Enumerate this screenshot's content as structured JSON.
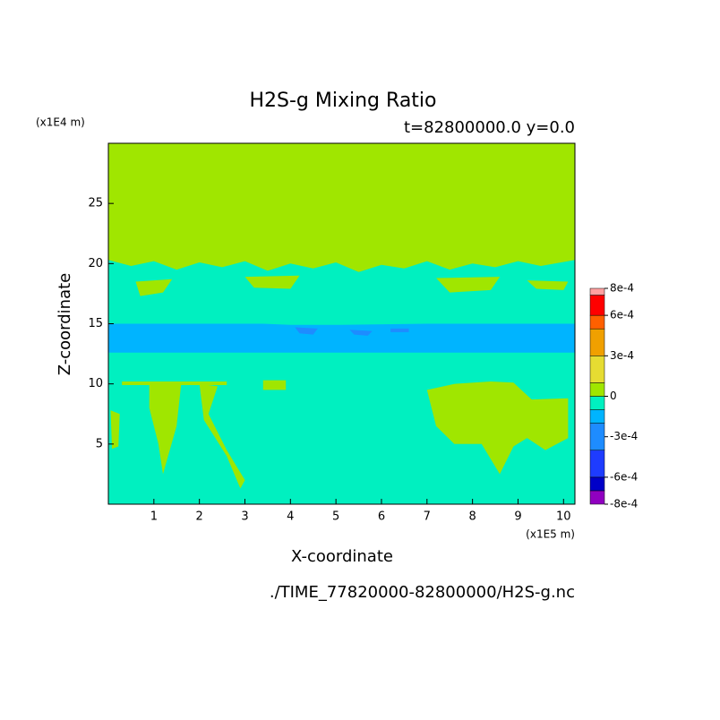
{
  "chart_data": {
    "type": "contour",
    "title": "H2S-g Mixing Ratio",
    "subtitle": "t=82800000.0 y=0.0",
    "x_label": "X-coordinate",
    "y_label": "Z-coordinate",
    "x_unit": "(x1E5 m)",
    "y_unit": "(x1E4 m)",
    "footer": "./TIME_77820000-82800000/H2S-g.nc",
    "xlim": [
      0,
      10.25
    ],
    "ylim": [
      0,
      30
    ],
    "xticks": [
      1,
      2,
      3,
      4,
      5,
      6,
      7,
      8,
      9,
      10
    ],
    "yticks": [
      5,
      10,
      15,
      20,
      25
    ],
    "background_band": 5,
    "colorbar": {
      "levels": [
        -0.0008,
        -0.0007,
        -0.0006,
        -0.0004,
        -0.0002,
        -0.0001,
        0,
        0.0001,
        0.0003,
        0.0005,
        0.0006,
        0.00075,
        0.0008
      ],
      "colors": [
        "#9000c0",
        "#0000c8",
        "#1e3cff",
        "#1e8cff",
        "#00b4ff",
        "#00f0c0",
        "#a0e600",
        "#e6dc32",
        "#f0a000",
        "#ff6000",
        "#ff0000",
        "#ffa0a0"
      ],
      "ticks": [
        {
          "value": 0.0008,
          "label": "8e-4"
        },
        {
          "value": 0.0006,
          "label": "6e-4"
        },
        {
          "value": 0.0003,
          "label": "3e-4"
        },
        0,
        {
          "value": -0.0003,
          "label": "-3e-4"
        },
        {
          "value": -0.0006,
          "label": "-6e-4"
        },
        {
          "value": -0.0008,
          "label": "-8e-4"
        }
      ]
    },
    "regions": [
      {
        "band": 6,
        "x": [
          0,
          0.5,
          1,
          1.5,
          2,
          2.5,
          3,
          3.5,
          4,
          4.5,
          5,
          5.5,
          6,
          6.5,
          7,
          7.5,
          8,
          8.5,
          9,
          9.5,
          10.25,
          10.25,
          0
        ],
        "y": [
          20.3,
          19.8,
          20.2,
          19.5,
          20.1,
          19.7,
          20.2,
          19.4,
          20.0,
          19.6,
          20.1,
          19.3,
          19.9,
          19.6,
          20.2,
          19.5,
          20.0,
          19.7,
          20.2,
          19.8,
          20.3,
          30,
          30
        ]
      },
      {
        "band": 6,
        "x": [
          0.6,
          1.4,
          1.2,
          0.7
        ],
        "y": [
          18.5,
          18.7,
          17.6,
          17.3
        ]
      },
      {
        "band": 6,
        "x": [
          3.0,
          4.2,
          4.0,
          3.2
        ],
        "y": [
          18.9,
          19.0,
          17.9,
          18.0
        ]
      },
      {
        "band": 6,
        "x": [
          7.2,
          8.6,
          8.4,
          7.5
        ],
        "y": [
          18.8,
          18.9,
          17.8,
          17.6
        ]
      },
      {
        "band": 6,
        "x": [
          9.2,
          10.1,
          10.0,
          9.4
        ],
        "y": [
          18.6,
          18.5,
          17.8,
          17.9
        ]
      },
      {
        "band": 4,
        "x": [
          0,
          10.25,
          10.25,
          7,
          5,
          4,
          3.4,
          0
        ],
        "y": [
          12.6,
          12.6,
          15,
          15,
          14.9,
          14.9,
          15,
          15
        ]
      },
      {
        "band": 3,
        "x": [
          4.1,
          4.6,
          4.5,
          4.2
        ],
        "y": [
          14.7,
          14.6,
          14.1,
          14.2
        ]
      },
      {
        "band": 3,
        "x": [
          5.3,
          5.8,
          5.7,
          5.4
        ],
        "y": [
          14.5,
          14.4,
          14.0,
          14.1
        ]
      },
      {
        "band": 3,
        "x": [
          6.2,
          6.6,
          6.6,
          6.2
        ],
        "y": [
          14.6,
          14.6,
          14.3,
          14.3
        ]
      },
      {
        "band": 6,
        "x": [
          0.05,
          0.25,
          0.22,
          0.08
        ],
        "y": [
          7.8,
          7.5,
          4.8,
          4.6
        ]
      },
      {
        "band": 6,
        "x": [
          0.9,
          1.6,
          1.5,
          1.2,
          1.1,
          0.9
        ],
        "y": [
          10.0,
          10.0,
          6.5,
          2.5,
          5.0,
          8.0
        ]
      },
      {
        "band": 6,
        "x": [
          2.0,
          2.4,
          2.2,
          2.6,
          3.0,
          2.9,
          2.6,
          2.1
        ],
        "y": [
          10.0,
          9.8,
          7.5,
          4.5,
          2.0,
          1.3,
          4.0,
          7.0
        ]
      },
      {
        "band": 6,
        "x": [
          0.3,
          2.6,
          2.6,
          0.3
        ],
        "y": [
          10.2,
          10.2,
          9.9,
          9.9
        ]
      },
      {
        "band": 6,
        "x": [
          3.4,
          3.9,
          3.9,
          3.4
        ],
        "y": [
          10.3,
          10.3,
          9.5,
          9.5
        ]
      },
      {
        "band": 6,
        "x": [
          7,
          7.6,
          8.4,
          8.9,
          9.3,
          10.1,
          10.1,
          9.6,
          9.2,
          8.9,
          8.6,
          8.2,
          7.6,
          7.2
        ],
        "y": [
          9.5,
          10.0,
          10.2,
          10.1,
          8.7,
          8.8,
          5.5,
          4.5,
          5.5,
          4.8,
          2.5,
          5.0,
          5.0,
          6.5
        ]
      }
    ]
  }
}
